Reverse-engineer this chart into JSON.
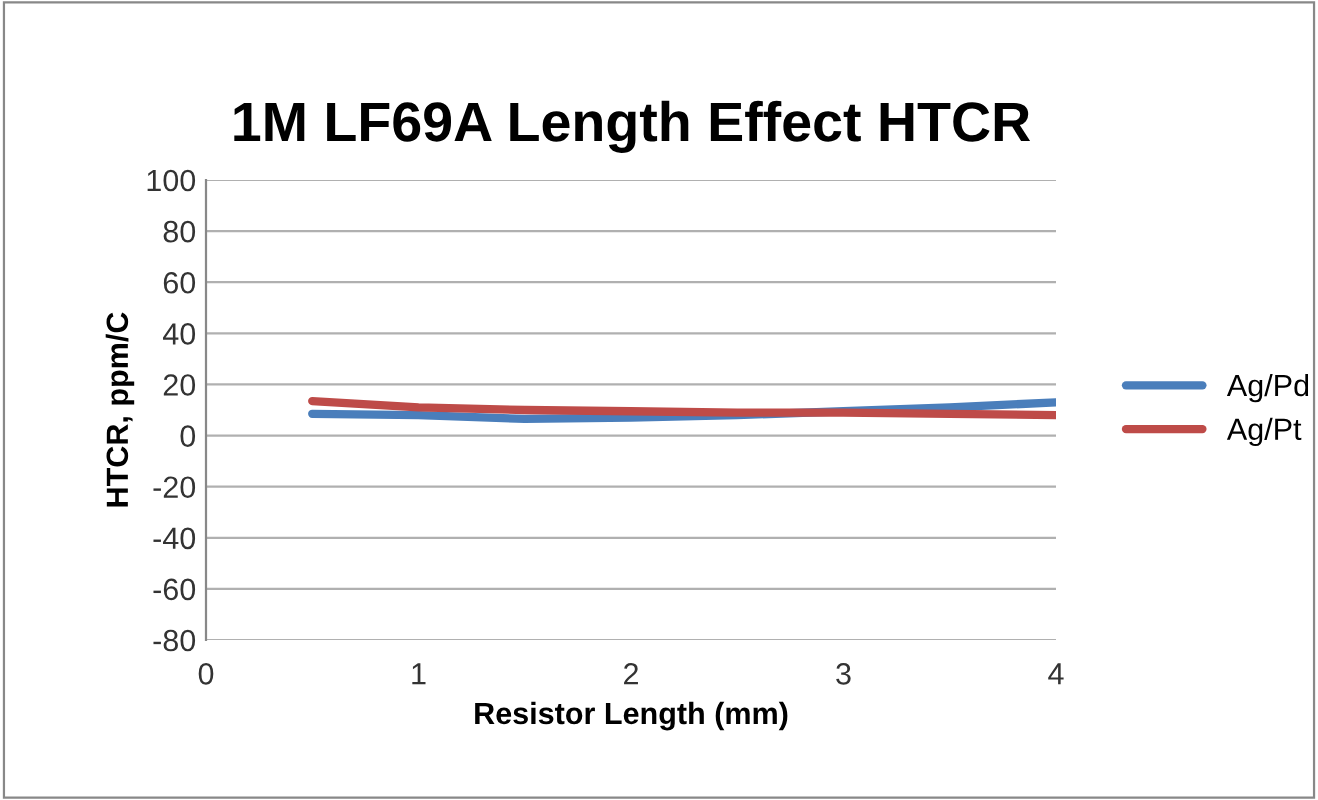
{
  "chart_data": {
    "type": "line",
    "title": "1M LF69A Length Effect HTCR",
    "xlabel": "Resistor Length (mm)",
    "ylabel": "HTCR, ppm/C",
    "x": [
      0.5,
      1,
      1.5,
      2,
      2.5,
      3,
      3.5,
      4
    ],
    "series": [
      {
        "name": "Ag/Pd",
        "color": "#4a7ebb",
        "values": [
          8.5,
          8,
          6.5,
          7,
          8,
          9.5,
          11,
          13
        ]
      },
      {
        "name": "Ag/Pt",
        "color": "#be4b48",
        "values": [
          13.5,
          11,
          10,
          9.5,
          9,
          9,
          8.5,
          8
        ]
      }
    ],
    "xlim": [
      0,
      4
    ],
    "xticks": [
      0,
      1,
      2,
      3,
      4
    ],
    "ylim": [
      -80,
      100
    ],
    "yticks": [
      -80,
      -60,
      -40,
      -20,
      0,
      20,
      40,
      60,
      80,
      100
    ],
    "grid": "y",
    "legend": "right",
    "marker": "none",
    "line_style": "solid"
  }
}
